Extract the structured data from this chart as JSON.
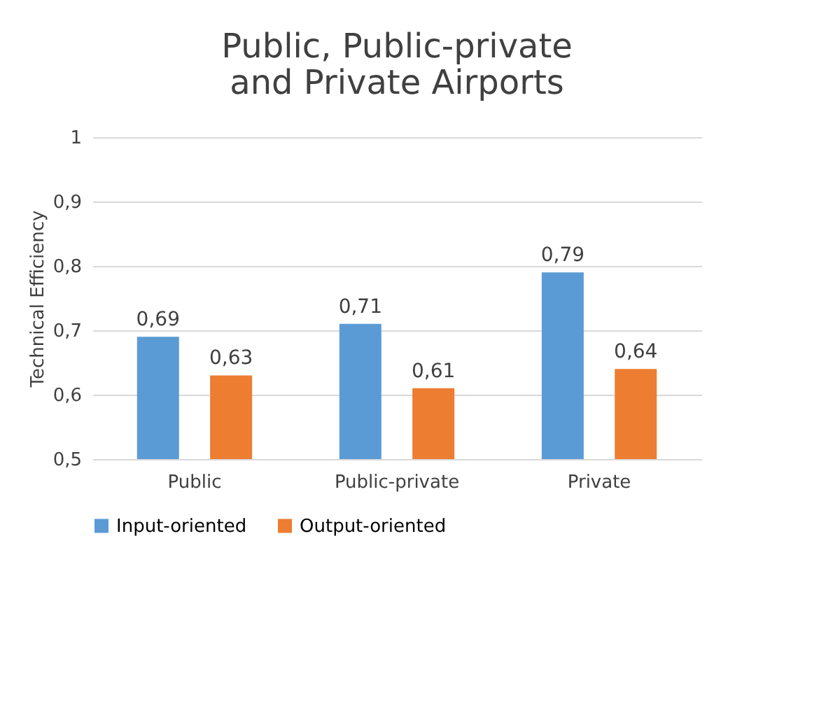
{
  "chart_data": {
    "type": "bar",
    "title": "Public, Public-private and Private Airports",
    "ylabel": "Technical Efficiency",
    "categories": [
      "Public",
      "Public-private",
      "Private"
    ],
    "series": [
      {
        "name": "Input-oriented",
        "color": "#5b9bd5",
        "values": [
          0.69,
          0.71,
          0.79
        ],
        "value_labels": [
          "0,69",
          "0,71",
          "0,79"
        ]
      },
      {
        "name": "Output-oriented",
        "color": "#ed7d31",
        "values": [
          0.63,
          0.61,
          0.64
        ],
        "value_labels": [
          "0,63",
          "0,61",
          "0,64"
        ]
      }
    ],
    "ylim": [
      0.5,
      1
    ],
    "yticks": [
      {
        "value": 0.5,
        "label": "0,5"
      },
      {
        "value": 0.6,
        "label": "0,6"
      },
      {
        "value": 0.7,
        "label": "0,7"
      },
      {
        "value": 0.8,
        "label": "0,8"
      },
      {
        "value": 0.9,
        "label": "0,9"
      },
      {
        "value": 1,
        "label": "1"
      }
    ],
    "grid": "y",
    "legend": "bottom"
  }
}
